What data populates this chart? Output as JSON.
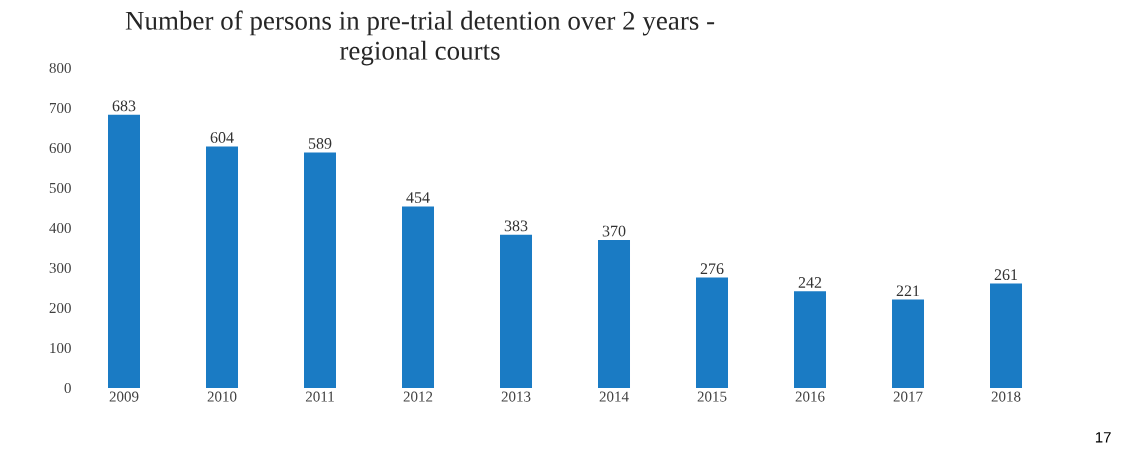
{
  "chart_data": {
    "type": "bar",
    "title": "Number of persons in pre-trial detention over 2 years -\nregional courts",
    "categories": [
      "2009",
      "2010",
      "2011",
      "2012",
      "2013",
      "2014",
      "2015",
      "2016",
      "2017",
      "2018"
    ],
    "values": [
      683,
      604,
      589,
      454,
      383,
      370,
      276,
      242,
      221,
      261
    ],
    "color": "#1a7bc4",
    "data_labels": true,
    "ylim": [
      0,
      800
    ],
    "yticks": [
      0,
      100,
      200,
      300,
      400,
      500,
      600,
      700,
      800
    ],
    "annotations": [
      "17"
    ]
  }
}
